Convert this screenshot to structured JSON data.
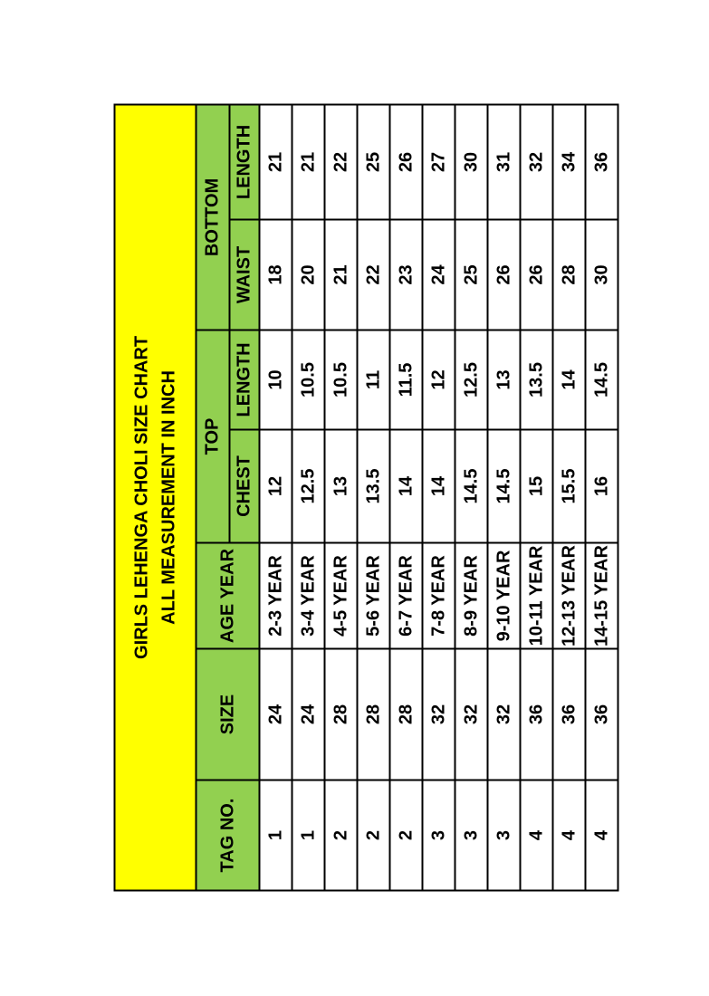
{
  "title_line1": "GIRLS LEHENGA CHOLI SIZE CHART",
  "title_line2": "ALL MEASUREMENT IN INCH",
  "headers": {
    "tag": "TAG NO.",
    "size": "SIZE",
    "age": "AGE YEAR",
    "top": "TOP",
    "bottom": "BOTTOM",
    "chest": "CHEST",
    "top_length": "LENGTH",
    "waist": "WAIST",
    "bottom_length": "LENGTH"
  },
  "colors": {
    "title_bg": "#ffff00",
    "header_bg": "#92d050"
  },
  "rows": [
    {
      "tag": "1",
      "size": "24",
      "age": "2-3 YEAR",
      "chest": "12",
      "top_length": "10",
      "waist": "18",
      "bottom_length": "21"
    },
    {
      "tag": "1",
      "size": "24",
      "age": "3-4 YEAR",
      "chest": "12.5",
      "top_length": "10.5",
      "waist": "20",
      "bottom_length": "21"
    },
    {
      "tag": "2",
      "size": "28",
      "age": "4-5 YEAR",
      "chest": "13",
      "top_length": "10.5",
      "waist": "21",
      "bottom_length": "22"
    },
    {
      "tag": "2",
      "size": "28",
      "age": "5-6 YEAR",
      "chest": "13.5",
      "top_length": "11",
      "waist": "22",
      "bottom_length": "25"
    },
    {
      "tag": "2",
      "size": "28",
      "age": "6-7 YEAR",
      "chest": "14",
      "top_length": "11.5",
      "waist": "23",
      "bottom_length": "26"
    },
    {
      "tag": "3",
      "size": "32",
      "age": "7-8 YEAR",
      "chest": "14",
      "top_length": "12",
      "waist": "24",
      "bottom_length": "27"
    },
    {
      "tag": "3",
      "size": "32",
      "age": "8-9 YEAR",
      "chest": "14.5",
      "top_length": "12.5",
      "waist": "25",
      "bottom_length": "30"
    },
    {
      "tag": "3",
      "size": "32",
      "age": "9-10 YEAR",
      "chest": "14.5",
      "top_length": "13",
      "waist": "26",
      "bottom_length": "31"
    },
    {
      "tag": "4",
      "size": "36",
      "age": "10-11 YEAR",
      "chest": "15",
      "top_length": "13.5",
      "waist": "26",
      "bottom_length": "32"
    },
    {
      "tag": "4",
      "size": "36",
      "age": "12-13 YEAR",
      "chest": "15.5",
      "top_length": "14",
      "waist": "28",
      "bottom_length": "34"
    },
    {
      "tag": "4",
      "size": "36",
      "age": "14-15 YEAR",
      "chest": "16",
      "top_length": "14.5",
      "waist": "30",
      "bottom_length": "36"
    }
  ]
}
